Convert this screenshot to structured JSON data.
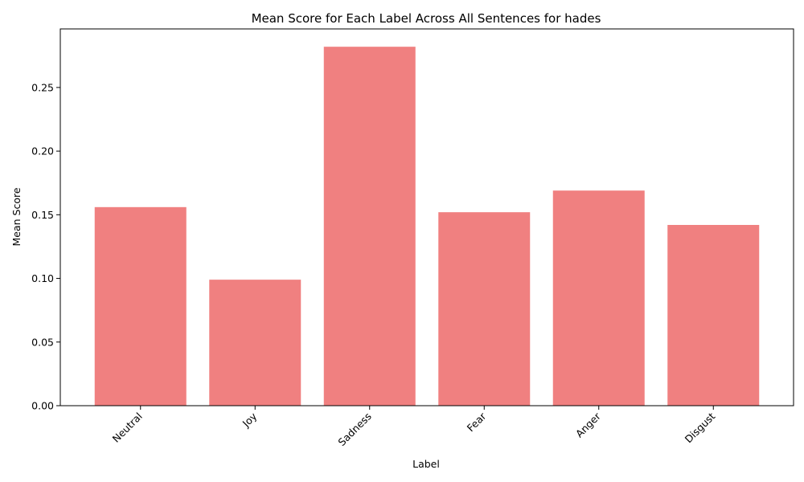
{
  "chart_data": {
    "type": "bar",
    "title": "Mean Score for Each Label Across All Sentences for hades",
    "xlabel": "Label",
    "ylabel": "Mean Score",
    "categories": [
      "Neutral",
      "Joy",
      "Sadness",
      "Fear",
      "Anger",
      "Disgust"
    ],
    "values": [
      0.156,
      0.099,
      0.282,
      0.152,
      0.169,
      0.142
    ],
    "ylim": [
      0,
      0.296
    ],
    "yticks": [
      "0.00",
      "0.05",
      "0.10",
      "0.15",
      "0.20",
      "0.25"
    ],
    "bar_color": "#f08080",
    "grid": false,
    "x_tick_rotation_deg": 45
  }
}
